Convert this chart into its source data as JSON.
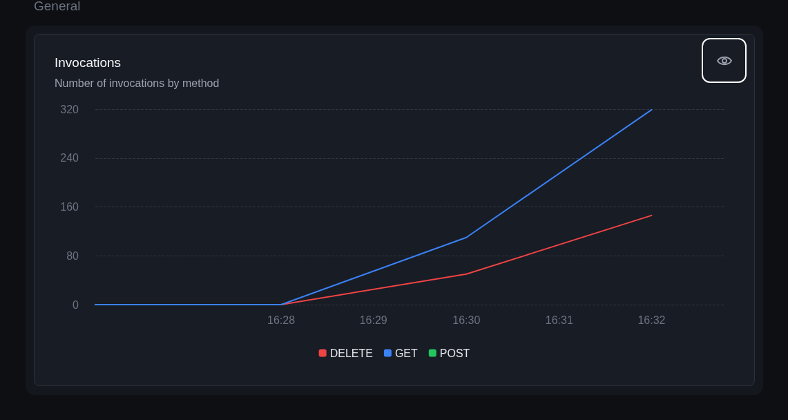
{
  "chart_data": {
    "type": "line",
    "title": "Invocations",
    "subtitle": "Number of invocations by method",
    "annotations": [
      "General"
    ],
    "x": [
      16.4333,
      16.4667,
      16.5,
      16.5333
    ],
    "series": [
      {
        "name": "DELETE",
        "color": "#ef4444",
        "values": [
          0,
          0,
          50,
          146
        ]
      },
      {
        "name": "GET",
        "color": "#3b82f6",
        "values": [
          0,
          0,
          110,
          319
        ]
      },
      {
        "name": "POST",
        "color": "#22c55e",
        "values": [
          null,
          null,
          null,
          null
        ]
      }
    ],
    "xlim": [
      16.4333,
      16.5464
    ],
    "xticks": [
      {
        "value": 16.4667,
        "label": "16:28"
      },
      {
        "value": 16.4833,
        "label": "16:29"
      },
      {
        "value": 16.5,
        "label": "16:30"
      },
      {
        "value": 16.5167,
        "label": "16:31"
      },
      {
        "value": 16.5333,
        "label": "16:32"
      }
    ],
    "ylim": [
      0,
      320
    ],
    "yticks": [
      0,
      80,
      160,
      240,
      320
    ],
    "grid": "y",
    "legend": "bottom",
    "marker": "none",
    "line_style": "solid"
  }
}
